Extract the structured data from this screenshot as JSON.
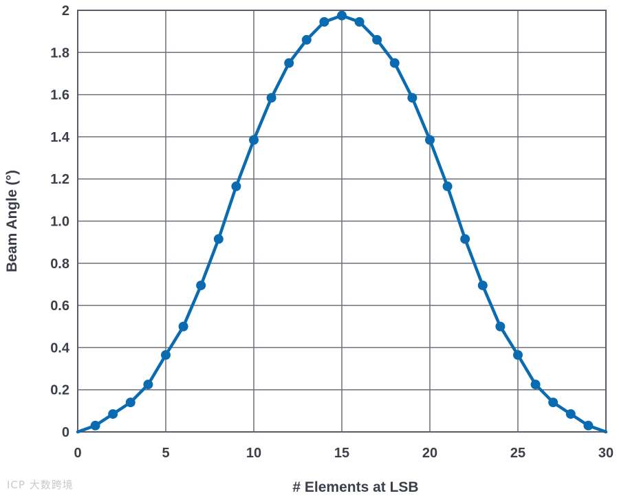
{
  "chart_data": {
    "type": "line",
    "xlabel": "# Elements at LSB",
    "ylabel": "Beam Angle (°)",
    "xlim": [
      0,
      30
    ],
    "ylim": [
      0,
      2
    ],
    "x_ticks": [
      0,
      5,
      10,
      15,
      20,
      25,
      30
    ],
    "x_tick_labels": [
      "0",
      "5",
      "10",
      "15",
      "20",
      "25",
      "30"
    ],
    "y_ticks": [
      0,
      0.2,
      0.4,
      0.6,
      0.8,
      1.0,
      1.2,
      1.4,
      1.6,
      1.8,
      2.0
    ],
    "y_tick_labels": [
      "0",
      "0.2",
      "0.4",
      "0.6",
      "0.8",
      "1.0",
      "1.2",
      "1.4",
      "1.6",
      "1.8",
      "2"
    ],
    "x_grid_step": 5,
    "y_grid_step": 0.2,
    "grid": true,
    "series": [
      {
        "color": "#0b6bb0",
        "x": [
          0,
          1,
          2,
          3,
          4,
          5,
          6,
          7,
          8,
          9,
          10,
          11,
          12,
          13,
          14,
          15,
          16,
          17,
          18,
          19,
          20,
          21,
          22,
          23,
          24,
          25,
          26,
          27,
          28,
          29,
          30
        ],
        "y": [
          0.0,
          0.03,
          0.085,
          0.14,
          0.225,
          0.365,
          0.5,
          0.695,
          0.915,
          1.165,
          1.385,
          1.585,
          1.75,
          1.86,
          1.945,
          1.975,
          1.945,
          1.86,
          1.75,
          1.585,
          1.385,
          1.165,
          0.915,
          0.695,
          0.5,
          0.365,
          0.225,
          0.14,
          0.085,
          0.03,
          0.0
        ],
        "markers": true
      }
    ]
  },
  "watermark": "ICP 大数跨境"
}
